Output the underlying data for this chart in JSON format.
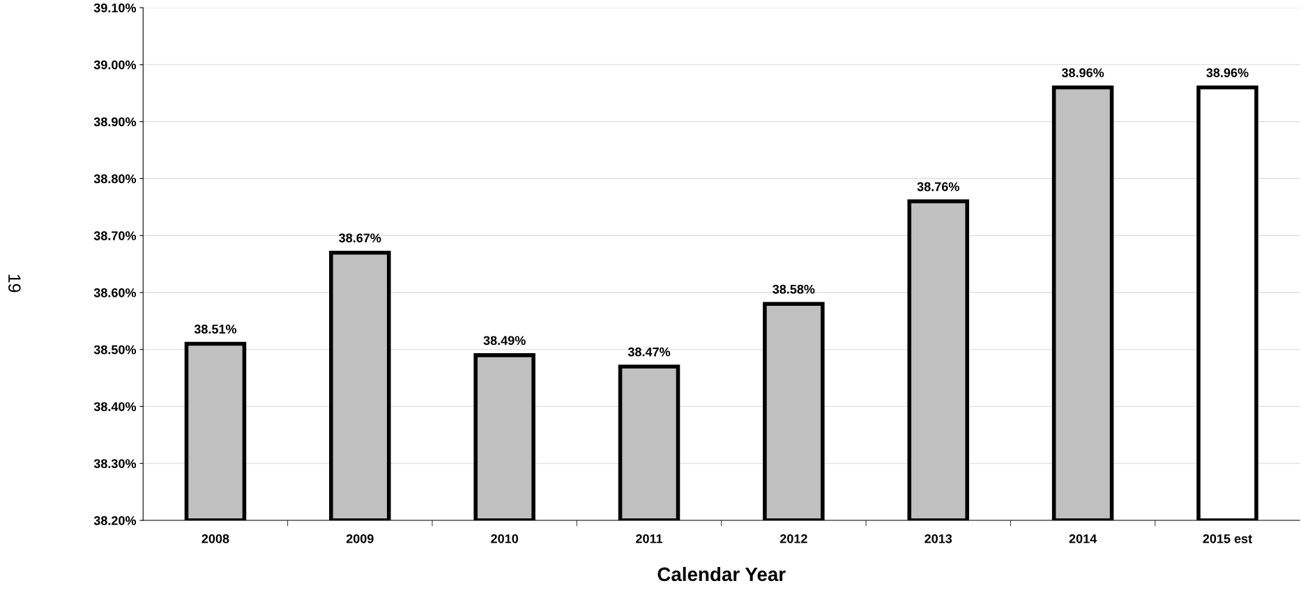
{
  "chart_data": {
    "type": "bar",
    "xlabel": "Calendar Year",
    "categories": [
      "2008",
      "2009",
      "2010",
      "2011",
      "2012",
      "2013",
      "2014",
      "2015 est"
    ],
    "values": [
      38.51,
      38.67,
      38.49,
      38.47,
      38.58,
      38.76,
      38.96,
      38.96
    ],
    "colors": [
      "#c0c0c0",
      "#c0c0c0",
      "#c0c0c0",
      "#c0c0c0",
      "#c0c0c0",
      "#c0c0c0",
      "#c0c0c0",
      "#ffffff"
    ],
    "value_labels": [
      "38.51%",
      "38.67%",
      "38.49%",
      "38.47%",
      "38.58%",
      "38.76%",
      "38.96%",
      "38.96%"
    ],
    "ylim": [
      38.2,
      39.1
    ],
    "yticks": [
      {
        "value": 38.2,
        "label": "38.20%"
      },
      {
        "value": 38.3,
        "label": "38.30%"
      },
      {
        "value": 38.4,
        "label": "38.40%"
      },
      {
        "value": 38.5,
        "label": "38.50%"
      },
      {
        "value": 38.6,
        "label": "38.60%"
      },
      {
        "value": 38.7,
        "label": "38.70%"
      },
      {
        "value": 38.8,
        "label": "38.80%"
      },
      {
        "value": 38.9,
        "label": "38.90%"
      },
      {
        "value": 39.0,
        "label": "39.00%"
      },
      {
        "value": 39.1,
        "label": "39.10%"
      }
    ],
    "grid": "y",
    "annotations": [
      "19"
    ]
  }
}
